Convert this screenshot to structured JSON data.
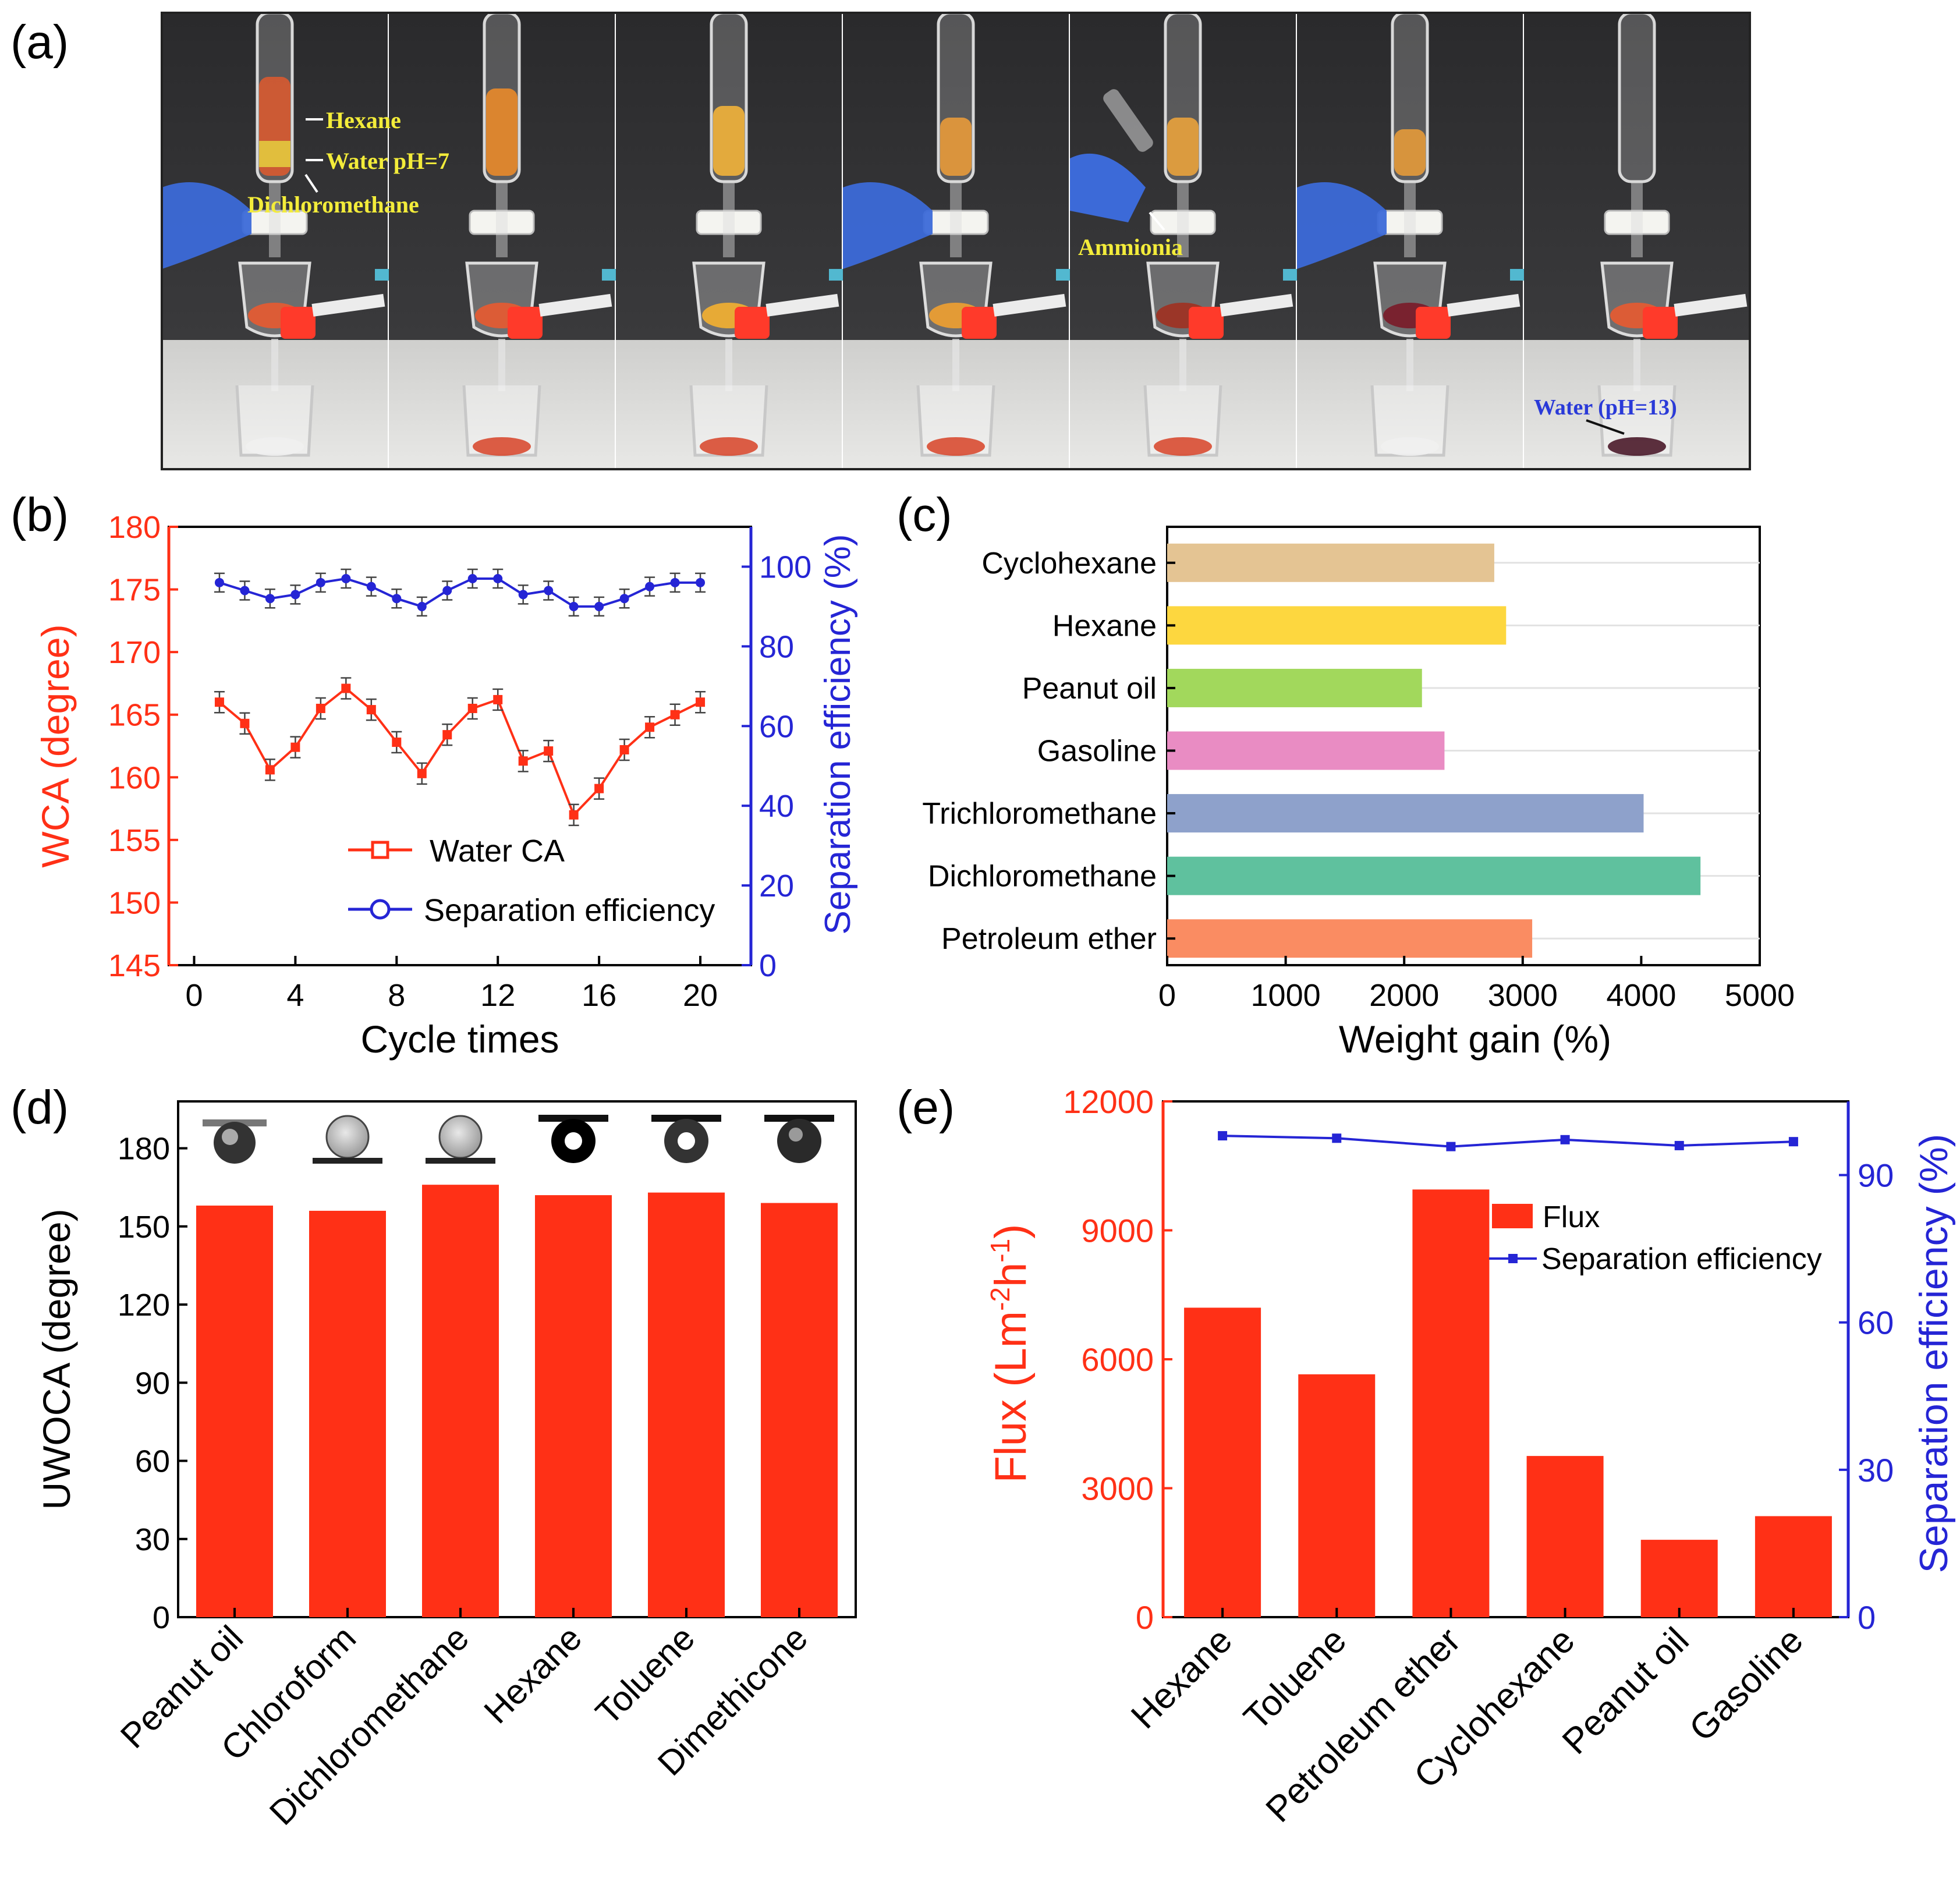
{
  "panel_labels": [
    "(a)",
    "(b)",
    "(c)",
    "(d)",
    "(e)"
  ],
  "photo_labels": {
    "hexane": "Hexane",
    "water": "Water pH=7",
    "dcm": "Dichloromethane",
    "ammonia": "Ammionia",
    "water13": "Water (pH=13)"
  },
  "colors": {
    "red": "#ff3016",
    "blue": "#2525d5",
    "arrow": "#52b8d0"
  },
  "chart_data": [
    {
      "id": "b",
      "type": "line",
      "x": [
        1,
        2,
        3,
        4,
        5,
        6,
        7,
        8,
        9,
        10,
        11,
        12,
        13,
        14,
        15,
        16,
        17,
        18,
        19,
        20
      ],
      "series": [
        {
          "name": "Water CA",
          "axis": "left",
          "values": [
            166,
            164.3,
            160.6,
            162.4,
            165.5,
            167.1,
            165.4,
            162.8,
            160.3,
            163.4,
            165.5,
            166.2,
            161.3,
            162.1,
            157,
            159.1,
            162.2,
            164,
            165,
            166
          ]
        },
        {
          "name": "Separation efficiency",
          "axis": "right",
          "values": [
            96,
            94,
            92,
            93,
            96,
            97,
            95,
            92,
            90,
            94,
            97,
            97,
            93,
            94,
            90,
            90,
            92,
            95,
            96,
            96
          ]
        }
      ],
      "xlabel": "Cycle times",
      "ylabel": "WCA (degree)",
      "y2label": "Separation efficiency (%)",
      "xlim": [
        -1,
        22
      ],
      "ylim": [
        145,
        180
      ],
      "y2lim": [
        0,
        110
      ],
      "xticks": [
        0,
        4,
        8,
        12,
        16,
        20
      ],
      "yticks": [
        145,
        150,
        155,
        160,
        165,
        170,
        175,
        180
      ],
      "y2ticks": [
        0,
        20,
        40,
        60,
        80,
        100
      ],
      "legend": "lower-center"
    },
    {
      "id": "c",
      "type": "bar",
      "orientation": "horizontal",
      "categories": [
        "Cyclohexane",
        "Hexane",
        "Peanut oil",
        "Gasoline",
        "Trichloromethane",
        "Dichloromethane",
        "Petroleum ether"
      ],
      "values": [
        2760,
        2860,
        2150,
        2340,
        4020,
        4500,
        3080
      ],
      "bar_colors": [
        "#e4c493",
        "#fdd73f",
        "#a2d85c",
        "#e98cc3",
        "#8ea1cb",
        "#5fc19e",
        "#fa8c62"
      ],
      "xlabel": "Weight gain (%)",
      "xlim": [
        0,
        5000
      ],
      "xticks": [
        0,
        1000,
        2000,
        3000,
        4000,
        5000
      ]
    },
    {
      "id": "d",
      "type": "bar",
      "categories": [
        "Peanut oil",
        "Chloroform",
        "Dichloromethane",
        "Hexane",
        "Toluene",
        "Dimethicone"
      ],
      "values": [
        158,
        156,
        166,
        162,
        163,
        159
      ],
      "ylabel": "UWOCA (degree)",
      "ylim": [
        0,
        198
      ],
      "yticks": [
        0,
        30,
        60,
        90,
        120,
        150,
        180
      ]
    },
    {
      "id": "e",
      "type": "bar",
      "categories": [
        "Hexane",
        "Toluene",
        "Petroleum ether",
        "Cyclohexane",
        "Peanut oil",
        "Gasoline"
      ],
      "series": [
        {
          "name": "Flux",
          "axis": "left",
          "values": [
            7200,
            5650,
            9950,
            3750,
            1800,
            2350
          ]
        },
        {
          "name": "Separation efficiency",
          "axis": "right",
          "values": [
            98,
            97.5,
            95.8,
            97.2,
            96,
            96.8
          ]
        }
      ],
      "ylabel": "Flux (Lm-2h-1)",
      "ylabel_main": "Flux (Lm",
      "ylabel_sup1": "-2",
      "ylabel_mid": "h",
      "ylabel_sup2": "-1",
      "ylabel_end": ")",
      "y2label": "Separation efficiency (%)",
      "ylim": [
        0,
        12000
      ],
      "y2lim": [
        0,
        105
      ],
      "yticks": [
        0,
        3000,
        6000,
        9000,
        12000
      ],
      "y2ticks": [
        0,
        30,
        60,
        90
      ],
      "legend": "upper-right"
    }
  ]
}
